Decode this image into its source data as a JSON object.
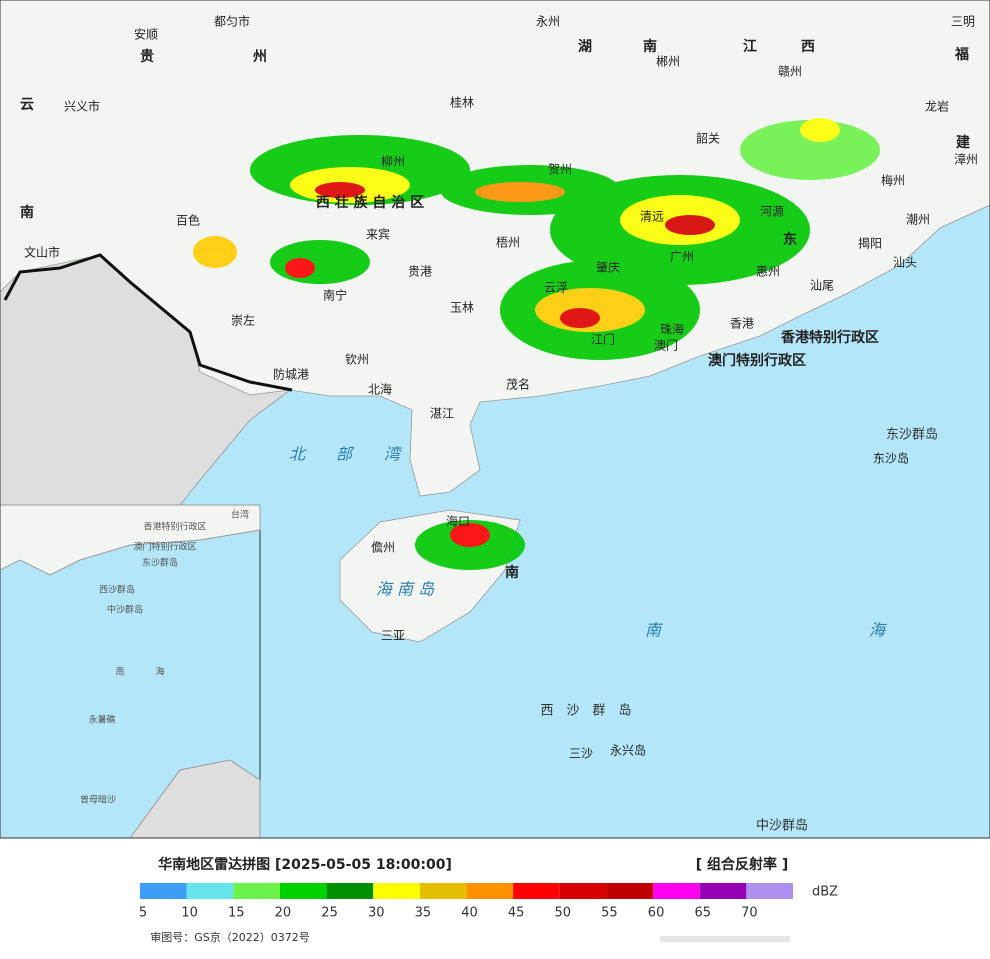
{
  "map": {
    "places": [
      "都匀市",
      "安顺",
      "贵",
      "州",
      "永州",
      "湖",
      "南",
      "郴州",
      "江",
      "西",
      "赣州",
      "三明",
      "福",
      "云",
      "兴义市",
      "桂林",
      "韶关",
      "龙岩",
      "建",
      "漳州",
      "梅州",
      "柳州",
      "贺州",
      "南",
      "百色",
      "西 壮 族 自 治 区",
      "清远",
      "河源",
      "潮州",
      "来宾",
      "梧州",
      "广州",
      "东",
      "揭阳",
      "汕头",
      "文山市",
      "贵港",
      "惠州",
      "汕尾",
      "南宁",
      "玉林",
      "云浮",
      "肇庆",
      "崇左",
      "珠海",
      "香港",
      "香港特别行政区",
      "澳门",
      "澳门特别行政区",
      "江门",
      "钦州",
      "防城港",
      "北海",
      "茂名",
      "湛江",
      "北",
      "部",
      "湾",
      "东沙群岛",
      "东沙岛",
      "海口",
      "儋州",
      "南",
      "海 南 岛",
      "三亚",
      "南",
      "海",
      "西　沙　群　岛",
      "三沙",
      "永兴岛",
      "中沙群岛"
    ]
  },
  "inset": {
    "places": [
      "香港特别行政区",
      "澳门特别行政区",
      "东沙群岛",
      "西沙群岛",
      "中沙群岛",
      "南",
      "海",
      "永暑礁",
      "曾母暗沙",
      "台湾"
    ]
  },
  "legend": {
    "title": "华南地区雷达拼图 [2025-05-05 18:00:00]",
    "product": "[ 组合反射率 ]",
    "unit": "dBZ",
    "colors": [
      "#3d9df5",
      "#66e2ec",
      "#6cf24a",
      "#00d200",
      "#009000",
      "#ffff00",
      "#e6c000",
      "#ff9000",
      "#ff0000",
      "#d60000",
      "#c00000",
      "#ff00f0",
      "#9600b4",
      "#ad90f0"
    ],
    "ticks": [
      5,
      10,
      15,
      20,
      25,
      30,
      35,
      40,
      45,
      50,
      55,
      60,
      65,
      70
    ]
  },
  "footer": {
    "approval": "审图号：GS京（2022）0372号"
  }
}
